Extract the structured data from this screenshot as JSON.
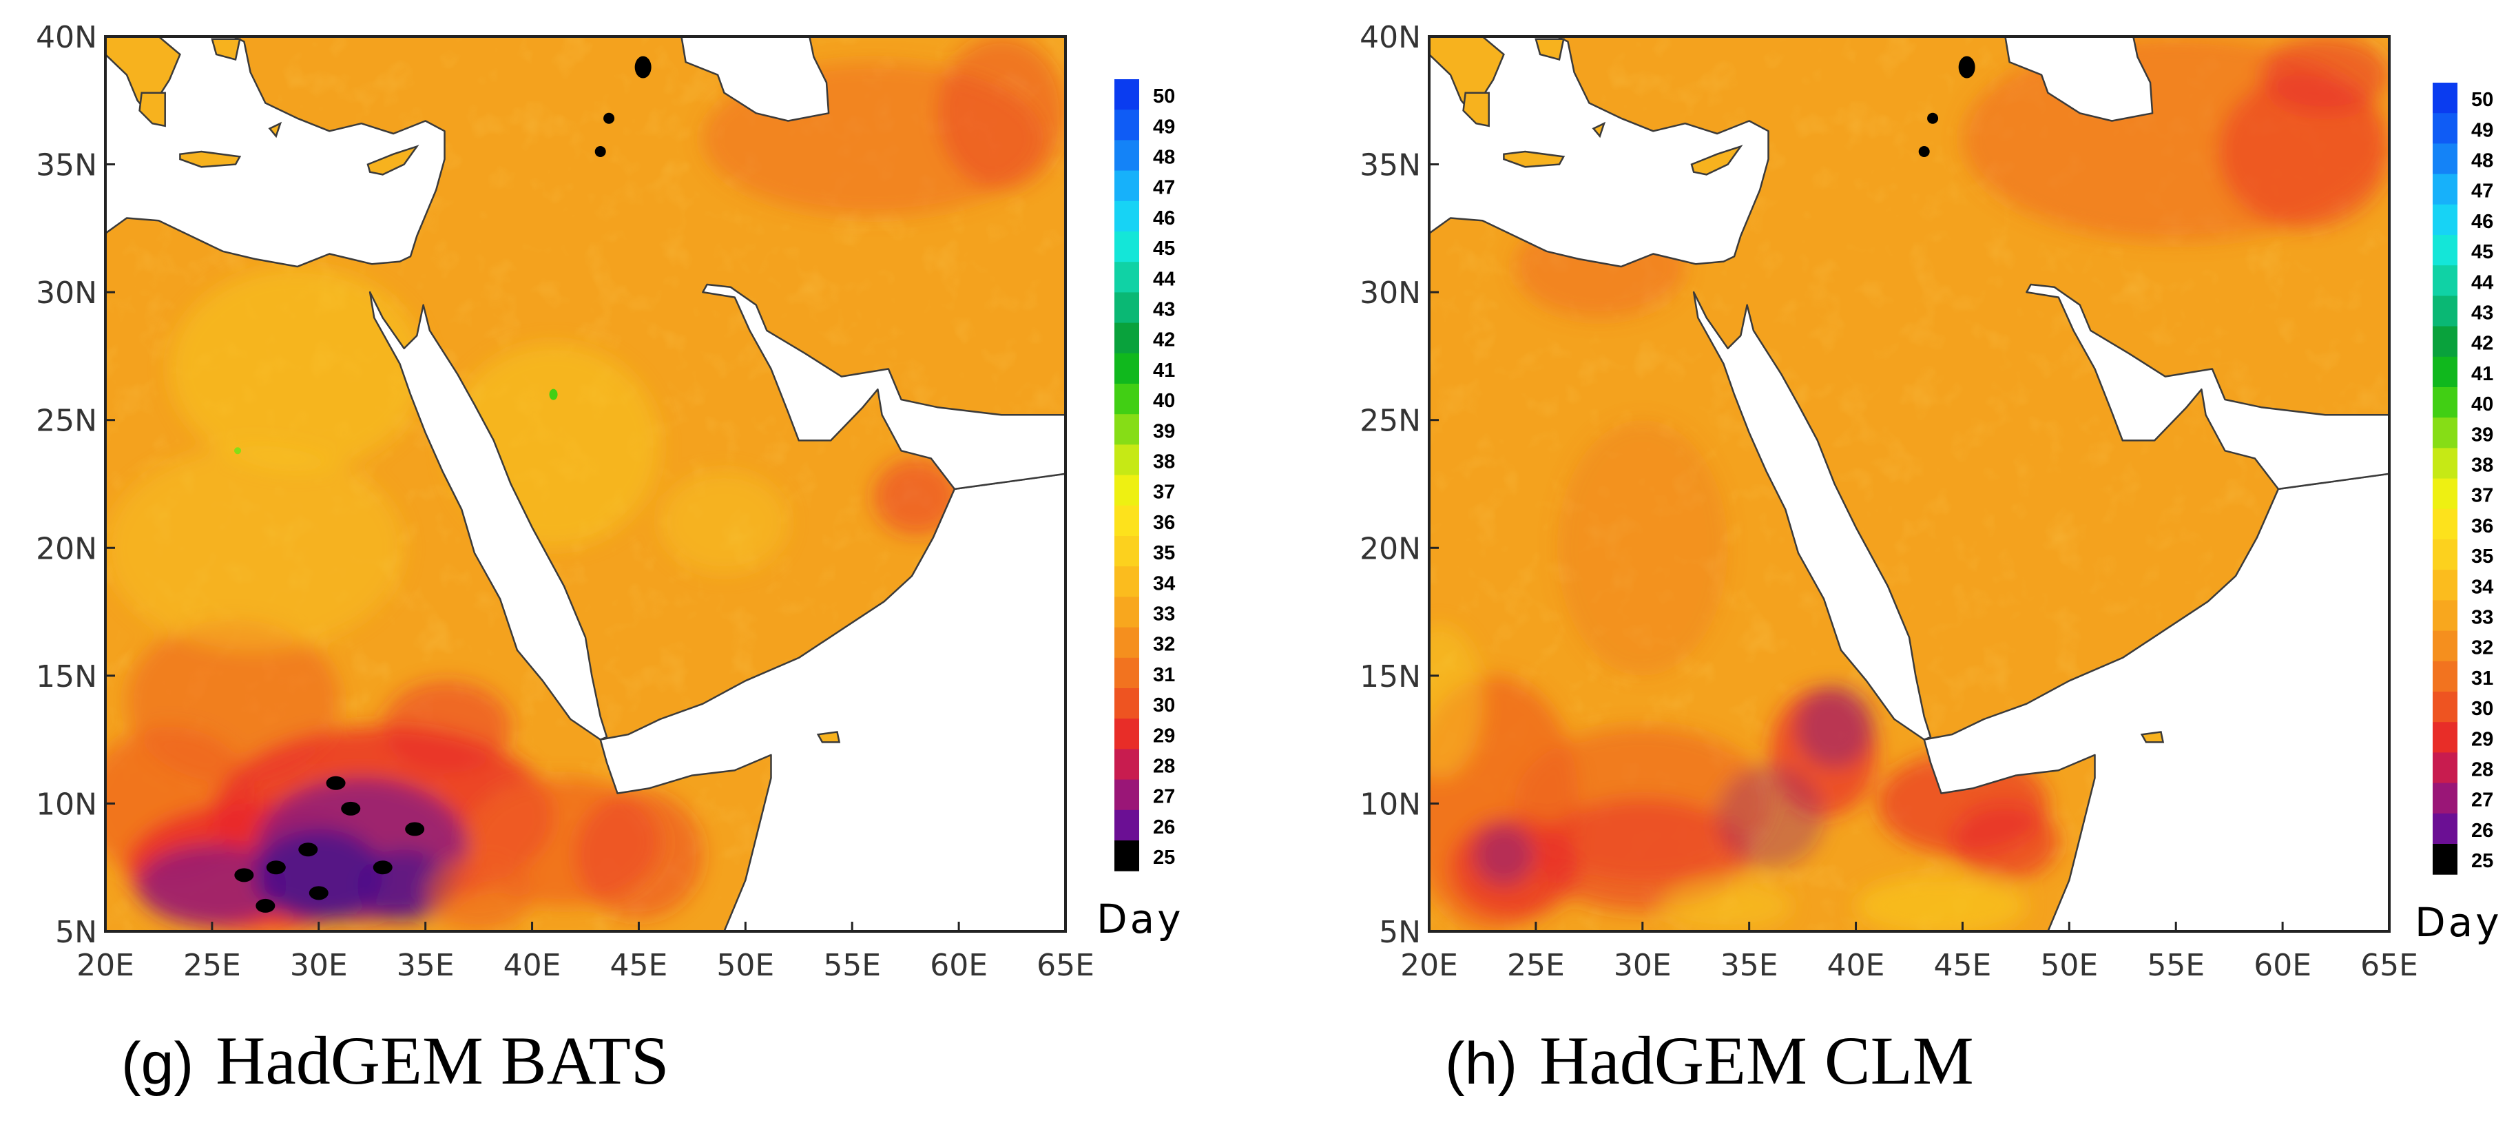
{
  "colors": {
    "water": "#ffffff",
    "coastline": "#3a3a3a",
    "land_base": "#f4a21e",
    "warm_patch": "#f8c51f",
    "hot_patch": "#ef6220",
    "red_patch": "#e8272a",
    "purple_patch": "#8a1a80",
    "dark_patch": "#4a108a",
    "black_patch": "#000000"
  },
  "axes": {
    "lon_ticks": [
      "20E",
      "25E",
      "30E",
      "35E",
      "40E",
      "45E",
      "50E",
      "55E",
      "60E",
      "65E"
    ],
    "lat_ticks": [
      "40N",
      "35N",
      "30N",
      "25N",
      "20N",
      "15N",
      "10N",
      "5N"
    ]
  },
  "colorbar": {
    "unit": "Day",
    "levels": [
      {
        "label": "50",
        "color": "#0a3cf0"
      },
      {
        "label": "49",
        "color": "#0f5cf5"
      },
      {
        "label": "48",
        "color": "#1483f7"
      },
      {
        "label": "47",
        "color": "#17b1fa"
      },
      {
        "label": "46",
        "color": "#17d3f5"
      },
      {
        "label": "45",
        "color": "#14e6d8"
      },
      {
        "label": "44",
        "color": "#10d2a5"
      },
      {
        "label": "43",
        "color": "#0ab874"
      },
      {
        "label": "42",
        "color": "#09a23c"
      },
      {
        "label": "41",
        "color": "#10b81d"
      },
      {
        "label": "40",
        "color": "#41cf14"
      },
      {
        "label": "39",
        "color": "#86dd16"
      },
      {
        "label": "38",
        "color": "#c6e915"
      },
      {
        "label": "37",
        "color": "#eef012"
      },
      {
        "label": "36",
        "color": "#fde21c"
      },
      {
        "label": "35",
        "color": "#fcd11e"
      },
      {
        "label": "34",
        "color": "#fbbc1e"
      },
      {
        "label": "33",
        "color": "#f8a71e"
      },
      {
        "label": "32",
        "color": "#f58f1e"
      },
      {
        "label": "31",
        "color": "#f2731f"
      },
      {
        "label": "30",
        "color": "#ee5421"
      },
      {
        "label": "29",
        "color": "#e82d28"
      },
      {
        "label": "28",
        "color": "#c81c4f"
      },
      {
        "label": "27",
        "color": "#9a1677"
      },
      {
        "label": "26",
        "color": "#6b0f94"
      },
      {
        "label": "25",
        "color": "#000000"
      }
    ]
  },
  "panels": [
    {
      "letter": "(g)",
      "title": "HadGEM BATS",
      "variant": "bats"
    },
    {
      "letter": "(h)",
      "title": "HadGEM CLM",
      "variant": "clm"
    }
  ]
}
